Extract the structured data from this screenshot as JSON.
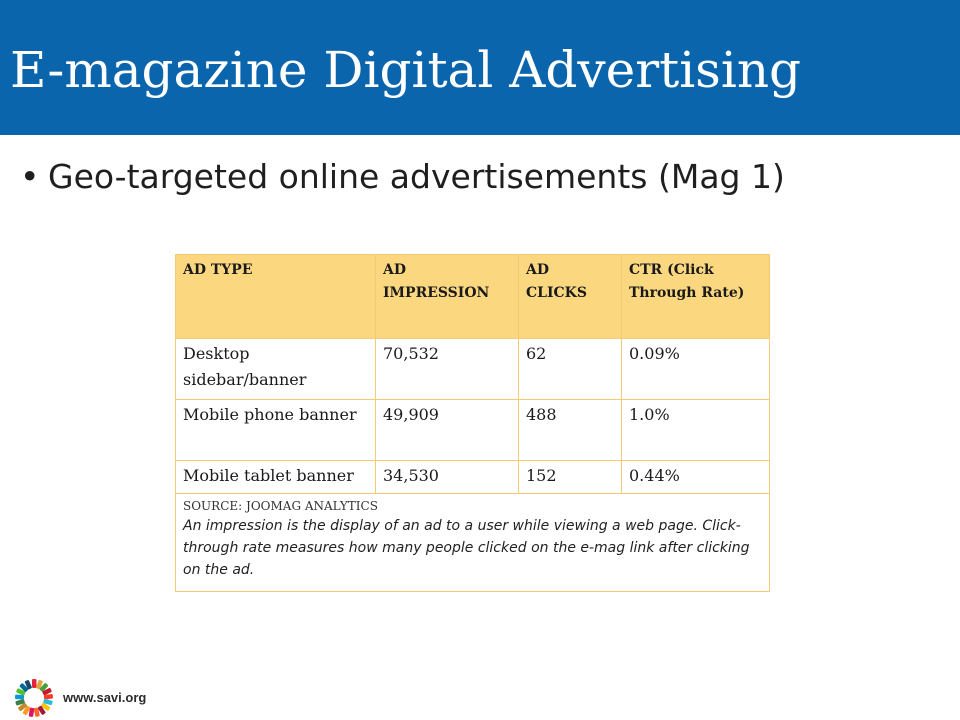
{
  "slide": {
    "title": "E-magazine Digital Advertising",
    "bullet": "Geo-targeted online advertisements (Mag 1)",
    "footer_url": "www.savi.org"
  },
  "table": {
    "headers": [
      "AD TYPE",
      "AD IMPRESSION",
      "AD CLICKS",
      "CTR (Click Through Rate)"
    ],
    "rows": [
      [
        "Desktop sidebar/banner",
        "70,532",
        "62",
        "0.09%"
      ],
      [
        "Mobile phone banner",
        "49,909",
        "488",
        "1.0%"
      ],
      [
        "Mobile tablet banner",
        "34,530",
        "152",
        "0.44%"
      ]
    ],
    "source": "SOURCE: JOOMAG ANALYTICS",
    "note": "An impression is the display of an ad to a user while viewing a web page. Click-through rate measures how many people clicked on the e-mag link after clicking on the ad."
  },
  "colors": {
    "title_bar": "#0b65ad",
    "header_fill": "#fbd780",
    "border": "#f3cc72"
  },
  "icons": {
    "logo": "savi-sunburst-logo"
  }
}
